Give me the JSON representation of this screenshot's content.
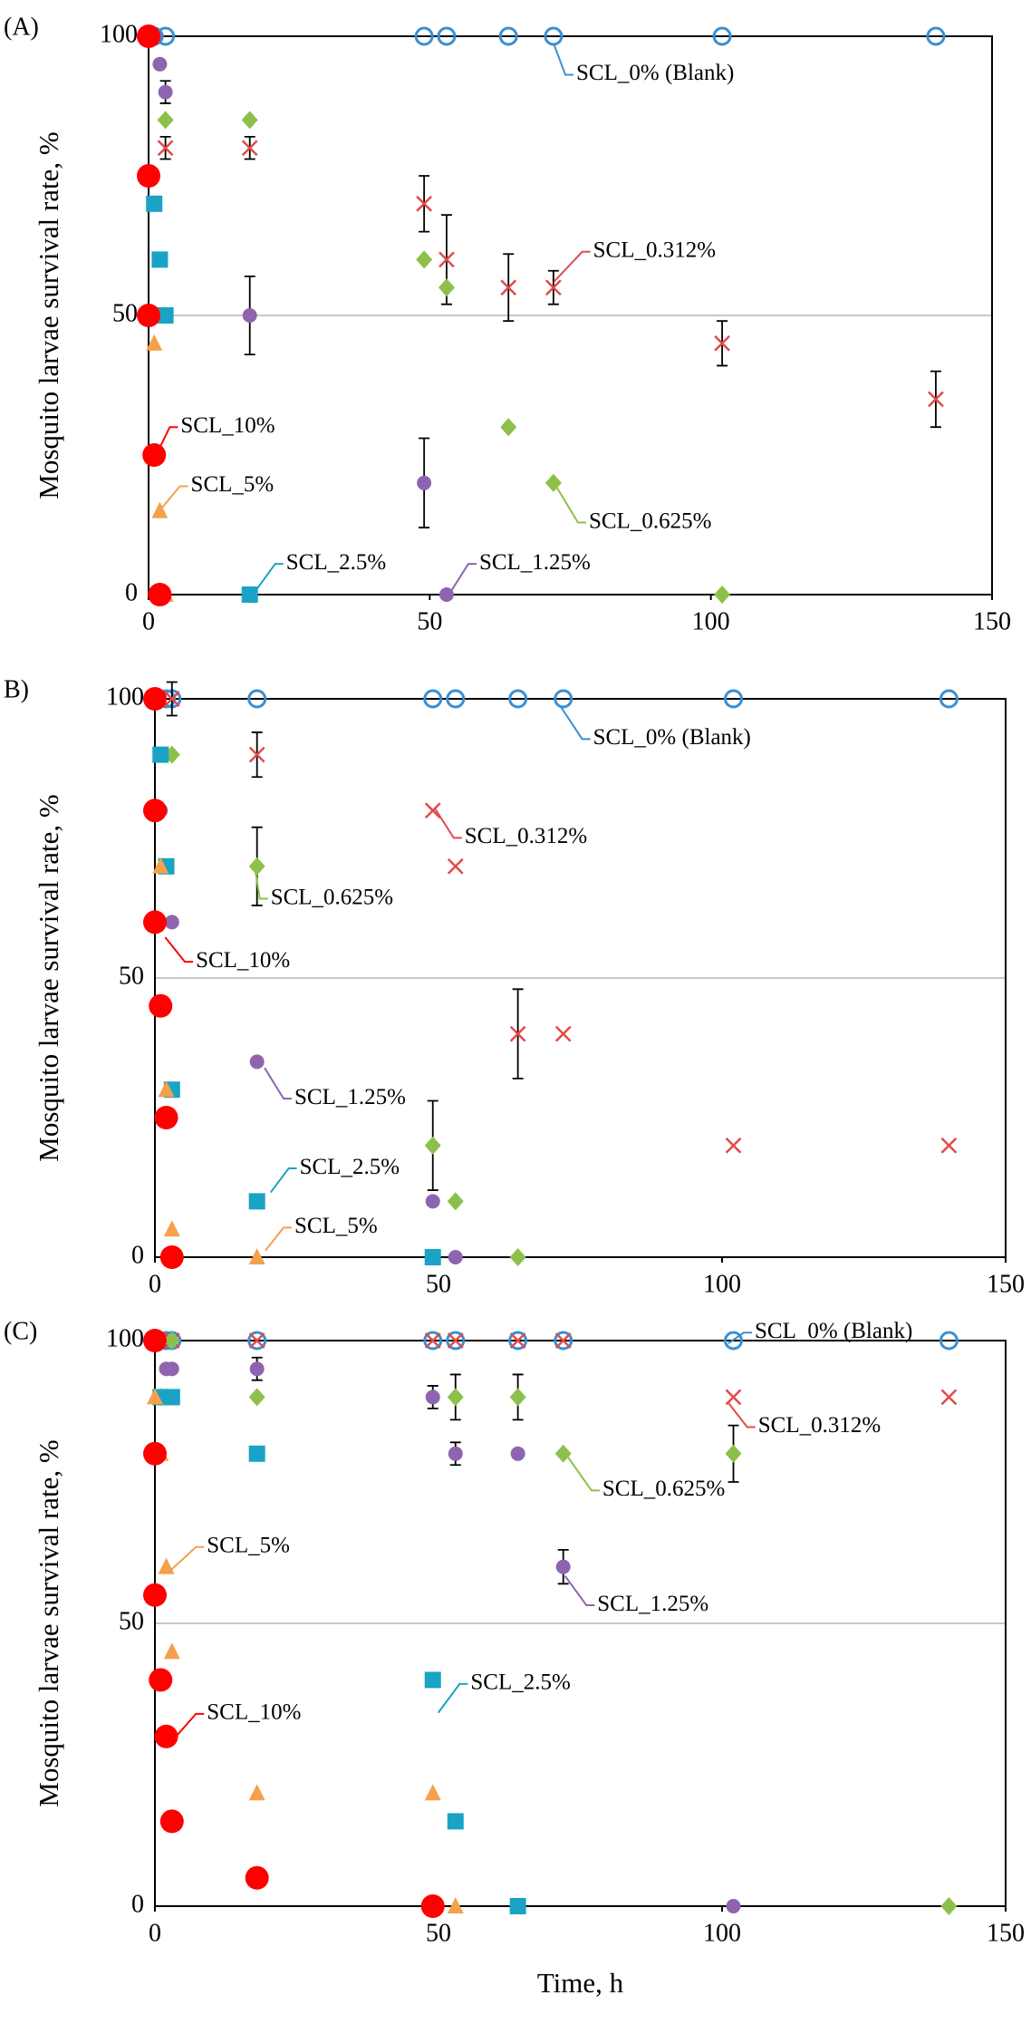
{
  "chart_data": [
    {
      "type": "scatter",
      "panel_label": "(A)",
      "y_label": "Mosquito larvae survival rate, %",
      "xlim": [
        0,
        150
      ],
      "xticks": [
        0,
        50,
        100,
        150
      ],
      "ylim": [
        0,
        100
      ],
      "yticks": [
        0,
        50,
        100
      ],
      "grid": true,
      "series": [
        {
          "name": "SCL_0% (Blank)",
          "color": "#3a8fd1",
          "marker": "circle-open",
          "x": [
            0,
            1,
            3,
            49,
            53,
            64,
            72,
            102,
            140
          ],
          "values": [
            100,
            100,
            100,
            100,
            100,
            100,
            100,
            100,
            100
          ]
        },
        {
          "name": "SCL_0.312%",
          "color": "#e04b4b",
          "marker": "x",
          "x": [
            3,
            18,
            49,
            53,
            64,
            72,
            102,
            140
          ],
          "values": [
            80,
            80,
            70,
            60,
            55,
            55,
            45,
            35
          ],
          "errors": [
            2,
            2,
            5,
            8,
            6,
            3,
            4,
            5
          ]
        },
        {
          "name": "SCL_0.625%",
          "color": "#8dc04a",
          "marker": "diamond",
          "x": [
            3,
            18,
            49,
            53,
            64,
            72,
            102
          ],
          "values": [
            85,
            85,
            60,
            55,
            30,
            20,
            0
          ]
        },
        {
          "name": "SCL_1.25%",
          "color": "#8e64b0",
          "marker": "circle",
          "x": [
            1,
            2,
            3,
            18,
            49,
            53
          ],
          "values": [
            100,
            95,
            90,
            50,
            20,
            0
          ],
          "errors": [
            null,
            null,
            2,
            7,
            8,
            null
          ]
        },
        {
          "name": "SCL_2.5%",
          "color": "#1aa3c4",
          "marker": "square",
          "x": [
            0,
            1,
            2,
            3,
            18
          ],
          "values": [
            100,
            70,
            60,
            50,
            0
          ]
        },
        {
          "name": "SCL_5%",
          "color": "#f5a04a",
          "marker": "triangle",
          "x": [
            1,
            2,
            3
          ],
          "values": [
            45,
            15,
            0
          ]
        },
        {
          "name": "SCL_10%",
          "color": "#ff0000",
          "marker": "circle-big",
          "x": [
            0,
            0,
            0,
            1,
            2
          ],
          "values": [
            100,
            75,
            50,
            25,
            0
          ]
        }
      ]
    },
    {
      "type": "scatter",
      "panel_label": "B)",
      "y_label": "Mosquito larvae survival rate, %",
      "xlim": [
        0,
        150
      ],
      "xticks": [
        0,
        50,
        100,
        150
      ],
      "ylim": [
        0,
        100
      ],
      "yticks": [
        0,
        50,
        100
      ],
      "grid": true,
      "series": [
        {
          "name": "SCL_0% (Blank)",
          "color": "#3a8fd1",
          "marker": "circle-open",
          "x": [
            0,
            2,
            3,
            18,
            49,
            53,
            64,
            72,
            102,
            140
          ],
          "values": [
            100,
            100,
            100,
            100,
            100,
            100,
            100,
            100,
            100,
            100
          ]
        },
        {
          "name": "SCL_0.312%",
          "color": "#e04b4b",
          "marker": "x",
          "x": [
            3,
            18,
            49,
            53,
            64,
            72,
            102,
            140
          ],
          "values": [
            100,
            90,
            80,
            70,
            40,
            40,
            20,
            20
          ],
          "errors": [
            3,
            4,
            null,
            null,
            8,
            null,
            null,
            null
          ]
        },
        {
          "name": "SCL_0.625%",
          "color": "#8dc04a",
          "marker": "diamond",
          "x": [
            3,
            18,
            49,
            53,
            64
          ],
          "values": [
            90,
            70,
            20,
            10,
            0
          ],
          "errors": [
            null,
            7,
            8,
            null,
            null
          ]
        },
        {
          "name": "SCL_1.25%",
          "color": "#8e64b0",
          "marker": "circle",
          "x": [
            1,
            3,
            18,
            49,
            53
          ],
          "values": [
            80,
            60,
            35,
            10,
            0
          ]
        },
        {
          "name": "SCL_2.5%",
          "color": "#1aa3c4",
          "marker": "square",
          "x": [
            1,
            2,
            3,
            18,
            49
          ],
          "values": [
            90,
            70,
            30,
            10,
            0
          ]
        },
        {
          "name": "SCL_5%",
          "color": "#f5a04a",
          "marker": "triangle",
          "x": [
            1,
            2,
            3,
            18
          ],
          "values": [
            70,
            30,
            5,
            0
          ]
        },
        {
          "name": "SCL_10%",
          "color": "#ff0000",
          "marker": "circle-big",
          "x": [
            0,
            0,
            0,
            1,
            2,
            3
          ],
          "values": [
            100,
            80,
            60,
            45,
            25,
            0
          ]
        }
      ]
    },
    {
      "type": "scatter",
      "panel_label": "(C)",
      "y_label": "Mosquito larvae survival rate, %",
      "x_label": "Time, h",
      "xlim": [
        0,
        150
      ],
      "xticks": [
        0,
        50,
        100,
        150
      ],
      "ylim": [
        0,
        100
      ],
      "yticks": [
        0,
        50,
        100
      ],
      "grid": true,
      "series": [
        {
          "name": "SCL_0% (Blank)",
          "color": "#3a8fd1",
          "marker": "circle-open",
          "x": [
            0,
            2,
            3,
            18,
            49,
            53,
            64,
            72,
            102,
            140
          ],
          "values": [
            100,
            100,
            100,
            100,
            100,
            100,
            100,
            100,
            100,
            100
          ]
        },
        {
          "name": "SCL_0.312%",
          "color": "#e04b4b",
          "marker": "x",
          "x": [
            3,
            18,
            49,
            53,
            64,
            72,
            102,
            140
          ],
          "values": [
            100,
            100,
            100,
            100,
            100,
            100,
            90,
            90
          ]
        },
        {
          "name": "SCL_0.625%",
          "color": "#8dc04a",
          "marker": "diamond",
          "x": [
            1,
            3,
            18,
            53,
            64,
            72,
            102,
            140
          ],
          "values": [
            90,
            100,
            90,
            90,
            90,
            80,
            80,
            0
          ],
          "errors": [
            null,
            null,
            null,
            4,
            4,
            null,
            5,
            null
          ]
        },
        {
          "name": "SCL_1.25%",
          "color": "#8e64b0",
          "marker": "circle",
          "x": [
            2,
            3,
            18,
            49,
            53,
            64,
            72,
            102
          ],
          "values": [
            95,
            95,
            95,
            90,
            80,
            80,
            60,
            0
          ],
          "errors": [
            null,
            null,
            2,
            2,
            2,
            null,
            3,
            null
          ]
        },
        {
          "name": "SCL_2.5%",
          "color": "#1aa3c4",
          "marker": "square",
          "x": [
            1,
            3,
            18,
            49,
            53,
            64
          ],
          "values": [
            90,
            90,
            80,
            40,
            15,
            0
          ]
        },
        {
          "name": "SCL_5%",
          "color": "#f5a04a",
          "marker": "triangle",
          "x": [
            0,
            1,
            2,
            3,
            18,
            49,
            53
          ],
          "values": [
            90,
            80,
            60,
            45,
            20,
            20,
            0
          ]
        },
        {
          "name": "SCL_10%",
          "color": "#ff0000",
          "marker": "circle-big",
          "x": [
            0,
            0,
            0,
            1,
            2,
            3,
            18,
            49
          ],
          "values": [
            100,
            80,
            55,
            40,
            30,
            15,
            5,
            0
          ]
        }
      ]
    }
  ]
}
